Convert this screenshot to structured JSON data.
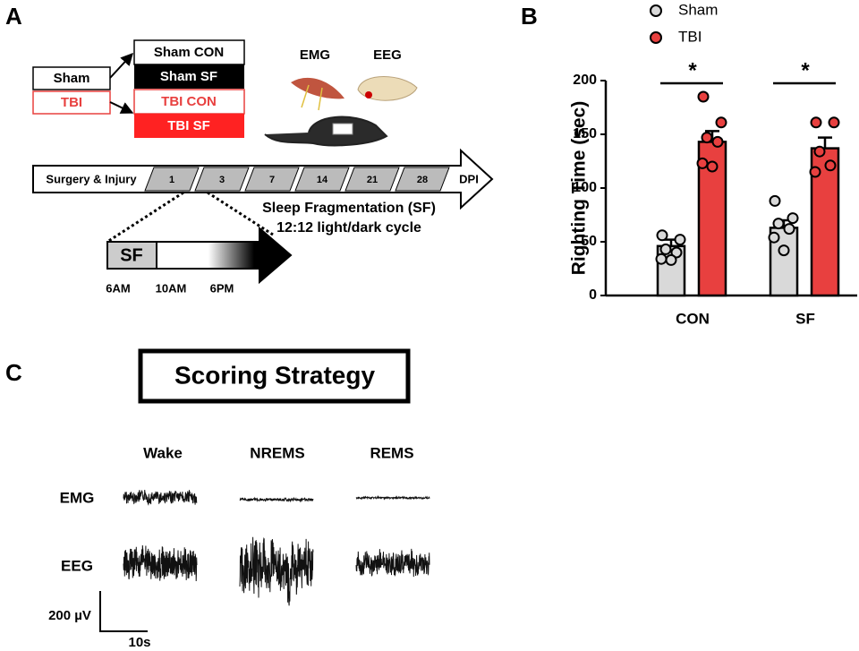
{
  "panel_a": {
    "label": "A",
    "groups": [
      "Sham",
      "TBI"
    ],
    "conditions": [
      "Sham CON",
      "Sham SF",
      "TBI CON",
      "TBI SF"
    ],
    "recordings": [
      "EMG",
      "EEG"
    ],
    "timeline": {
      "start": "Surgery & Injury",
      "days": [
        1,
        3,
        7,
        14,
        21,
        28
      ],
      "unit": "DPI"
    },
    "protocol": [
      "Sleep Fragmentation (SF)",
      "12:12 light/dark cycle"
    ],
    "daily": {
      "block": "SF",
      "times": [
        "6AM",
        "10AM",
        "6PM"
      ]
    }
  },
  "chart_data": {
    "type": "bar",
    "panel_label": "B",
    "categories": [
      "CON",
      "SF"
    ],
    "series": [
      {
        "name": "Sham",
        "color": "#d9d9d9",
        "values": [
          46,
          63
        ],
        "errors": [
          6,
          7
        ],
        "points": [
          [
            56,
            52,
            43,
            40,
            34,
            33
          ],
          [
            88,
            72,
            67,
            62,
            54,
            42
          ]
        ]
      },
      {
        "name": "TBI",
        "color": "#e8403f",
        "values": [
          143,
          137
        ],
        "errors": [
          10,
          10
        ],
        "points": [
          [
            185,
            161,
            147,
            143,
            123,
            120
          ],
          [
            161,
            161,
            134,
            121,
            115
          ]
        ]
      }
    ],
    "ylabel": "Righting Time (sec)",
    "ylim": [
      0,
      200
    ],
    "yticks": [
      0,
      50,
      100,
      150,
      200
    ],
    "annotations": [
      "*",
      "*"
    ]
  },
  "panel_c": {
    "label": "C",
    "title": "Scoring Strategy",
    "states": [
      "Wake",
      "NREMS",
      "REMS"
    ],
    "signals": [
      "EMG",
      "EEG"
    ],
    "scale": {
      "y": "200 µV",
      "x": "10s"
    }
  }
}
